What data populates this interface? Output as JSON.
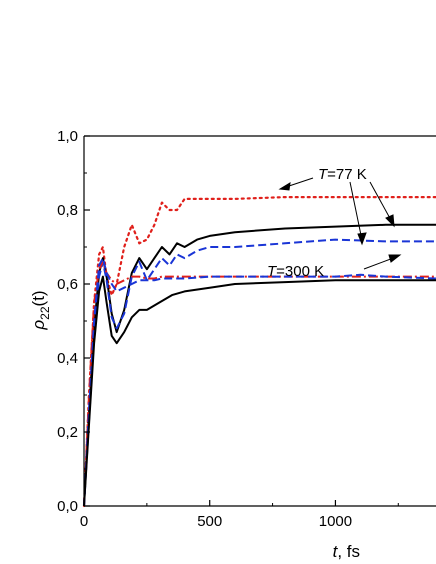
{
  "chart_data": {
    "type": "line",
    "xlabel": {
      "var": "t",
      "unit": ", fs"
    },
    "ylabel": {
      "var": "ρ",
      "sub": "22",
      "arg": "(t)"
    },
    "xlim": [
      0,
      1400
    ],
    "ylim": [
      0,
      1.0
    ],
    "x_ticks": [
      0,
      500,
      1000
    ],
    "x_tick_labels": [
      "0",
      "500",
      "1000"
    ],
    "y_ticks": [
      0,
      0.2,
      0.4,
      0.6,
      0.8,
      1.0
    ],
    "y_tick_labels": [
      "0,0",
      "0,2",
      "0,4",
      "0,6",
      "0,8",
      "1,0"
    ],
    "grid": false,
    "annotations": [
      {
        "var": "T",
        "text": "=77 K"
      },
      {
        "var": "T",
        "text": "=300 K"
      }
    ],
    "series": [
      {
        "style": "dotted",
        "color": "#e0201b",
        "x": [
          0,
          20,
          40,
          60,
          75,
          90,
          110,
          130,
          160,
          190,
          220,
          250,
          280,
          310,
          340,
          370,
          400,
          450,
          500,
          600,
          800,
          1000,
          1200,
          1400
        ],
        "y": [
          0,
          0.3,
          0.55,
          0.68,
          0.7,
          0.62,
          0.57,
          0.6,
          0.7,
          0.76,
          0.71,
          0.72,
          0.76,
          0.82,
          0.8,
          0.8,
          0.83,
          0.83,
          0.83,
          0.83,
          0.835,
          0.835,
          0.835,
          0.835
        ]
      },
      {
        "style": "solid",
        "color": "#000000",
        "x": [
          0,
          20,
          40,
          60,
          75,
          90,
          110,
          130,
          160,
          190,
          220,
          250,
          280,
          310,
          340,
          370,
          400,
          450,
          500,
          600,
          800,
          1000,
          1200,
          1400
        ],
        "y": [
          0,
          0.25,
          0.48,
          0.63,
          0.67,
          0.62,
          0.52,
          0.47,
          0.53,
          0.63,
          0.67,
          0.64,
          0.67,
          0.7,
          0.68,
          0.71,
          0.7,
          0.72,
          0.73,
          0.74,
          0.75,
          0.755,
          0.76,
          0.76
        ]
      },
      {
        "style": "dashed",
        "color": "#1a35d6",
        "x": [
          0,
          20,
          40,
          60,
          75,
          90,
          110,
          130,
          160,
          190,
          220,
          250,
          280,
          310,
          340,
          370,
          400,
          450,
          500,
          600,
          800,
          1000,
          1200,
          1400
        ],
        "y": [
          0,
          0.23,
          0.46,
          0.62,
          0.66,
          0.61,
          0.51,
          0.48,
          0.52,
          0.62,
          0.66,
          0.61,
          0.64,
          0.67,
          0.65,
          0.68,
          0.67,
          0.69,
          0.7,
          0.7,
          0.71,
          0.72,
          0.715,
          0.715
        ]
      },
      {
        "style": "dashdot",
        "color": "#e0201b",
        "x": [
          0,
          20,
          40,
          60,
          75,
          90,
          110,
          130,
          160,
          190,
          220,
          250,
          280,
          310,
          400,
          500,
          600,
          800,
          1000,
          1200,
          1400
        ],
        "y": [
          0,
          0.3,
          0.55,
          0.64,
          0.66,
          0.63,
          0.61,
          0.6,
          0.61,
          0.62,
          0.62,
          0.615,
          0.615,
          0.62,
          0.62,
          0.62,
          0.62,
          0.62,
          0.62,
          0.62,
          0.62
        ]
      },
      {
        "style": "dashed",
        "color": "#1a35d6",
        "x": [
          0,
          20,
          40,
          60,
          75,
          90,
          110,
          130,
          160,
          190,
          220,
          250,
          280,
          310,
          400,
          500,
          600,
          800,
          1000,
          1100,
          1200,
          1400
        ],
        "y": [
          0,
          0.26,
          0.5,
          0.65,
          0.67,
          0.63,
          0.6,
          0.58,
          0.59,
          0.6,
          0.61,
          0.61,
          0.61,
          0.615,
          0.615,
          0.62,
          0.62,
          0.62,
          0.62,
          0.625,
          0.62,
          0.615
        ]
      },
      {
        "style": "solid",
        "color": "#000000",
        "x": [
          0,
          20,
          40,
          60,
          75,
          90,
          110,
          130,
          160,
          190,
          220,
          250,
          300,
          350,
          400,
          500,
          600,
          800,
          1000,
          1200,
          1400
        ],
        "y": [
          0,
          0.22,
          0.44,
          0.58,
          0.62,
          0.55,
          0.46,
          0.44,
          0.47,
          0.51,
          0.53,
          0.53,
          0.55,
          0.57,
          0.58,
          0.59,
          0.6,
          0.605,
          0.61,
          0.61,
          0.61
        ]
      }
    ]
  }
}
